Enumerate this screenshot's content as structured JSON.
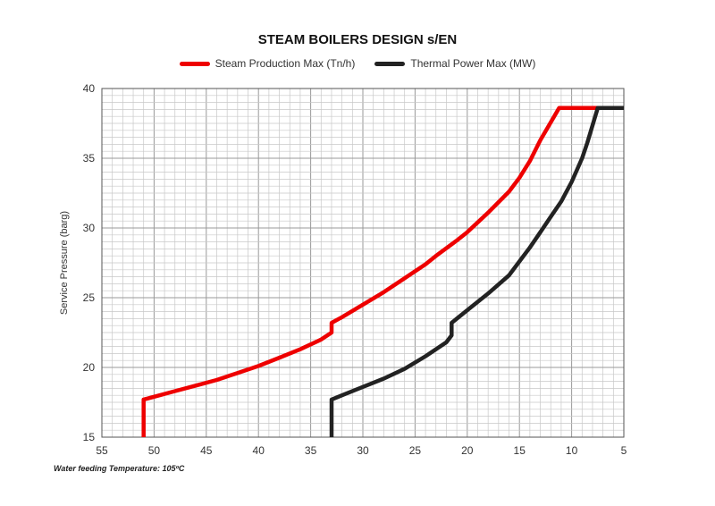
{
  "chart_data": {
    "type": "line",
    "title": "STEAM BOILERS DESIGN s/EN",
    "xlabel": "",
    "ylabel": "Service Pressure (barg)",
    "xlim": [
      55,
      5
    ],
    "ylim": [
      15,
      40
    ],
    "x_ticks": [
      55,
      50,
      45,
      40,
      35,
      30,
      25,
      20,
      15,
      10,
      5
    ],
    "y_ticks": [
      15,
      20,
      25,
      30,
      35,
      40
    ],
    "grid": true,
    "legend_position": "top",
    "footnote": "Water feeding Temperature: 105ºC",
    "series": [
      {
        "name": "Steam Production Max (Tn/h)",
        "color": "#ee0000",
        "x": [
          51,
          51,
          50,
          48,
          46,
          44,
          42,
          40,
          38,
          36,
          34,
          33,
          33,
          32,
          30,
          28,
          26,
          24,
          23,
          21,
          20,
          18,
          16,
          15,
          14,
          13,
          11.2,
          7
        ],
        "y": [
          15,
          17.7,
          17.9,
          18.3,
          18.7,
          19.1,
          19.6,
          20.1,
          20.7,
          21.3,
          22.0,
          22.5,
          23.2,
          23.6,
          24.5,
          25.4,
          26.4,
          27.4,
          28.0,
          29.1,
          29.7,
          31.1,
          32.6,
          33.6,
          34.8,
          36.3,
          38.6,
          38.6
        ]
      },
      {
        "name": "Thermal Power Max (MW)",
        "color": "#222222",
        "x": [
          33,
          33,
          32,
          30,
          28,
          26,
          24,
          22,
          21.5,
          21.5,
          20,
          18,
          16,
          15,
          14,
          13,
          12,
          11,
          10,
          9,
          8.5,
          7.5,
          5
        ],
        "y": [
          15,
          17.7,
          18.0,
          18.6,
          19.2,
          19.9,
          20.8,
          21.8,
          22.3,
          23.2,
          24.1,
          25.3,
          26.6,
          27.6,
          28.6,
          29.7,
          30.8,
          31.9,
          33.3,
          35.0,
          36.1,
          38.6,
          38.6
        ]
      }
    ]
  }
}
